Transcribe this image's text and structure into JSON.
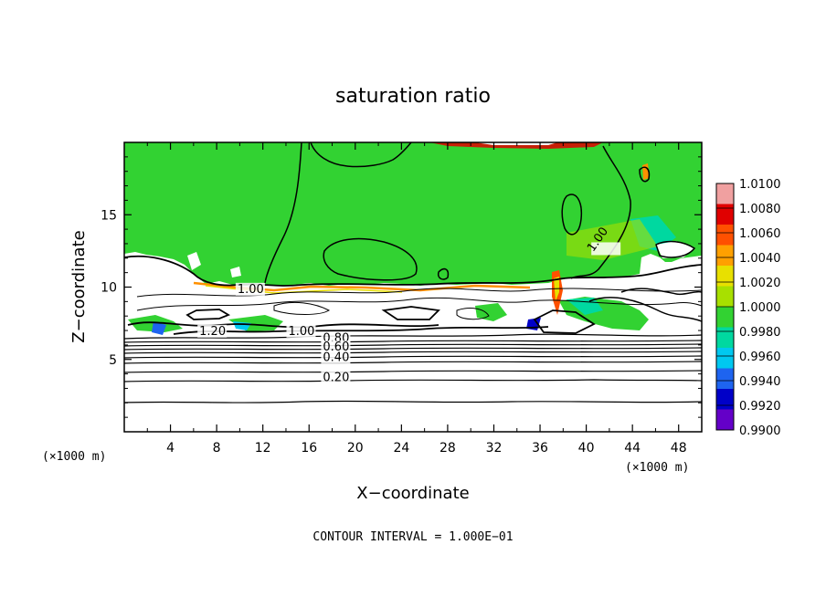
{
  "chart_data": {
    "type": "heatmap",
    "title": "saturation ratio",
    "xlabel": "X−coordinate",
    "ylabel": "Z−coordinate",
    "xunit": "(×1000 m)",
    "xunit_right": "(×1000 m)",
    "xlim": [
      0,
      50
    ],
    "ylim": [
      0,
      20
    ],
    "x_ticks": [
      "4",
      "8",
      "12",
      "16",
      "20",
      "24",
      "28",
      "32",
      "36",
      "40",
      "44",
      "48"
    ],
    "y_ticks": [
      "5",
      "10",
      "15"
    ],
    "colorbar": {
      "labels": [
        "1.0100",
        "1.0080",
        "1.0060",
        "1.0040",
        "1.0020",
        "1.0000",
        "0.9980",
        "0.9960",
        "0.9940",
        "0.9920",
        "0.9900"
      ],
      "colors": [
        "#f0a0a0",
        "#e00000",
        "#ff5000",
        "#ffa000",
        "#e8e000",
        "#a8e000",
        "#32d232",
        "#00d8a0",
        "#00c8f0",
        "#1e64f0",
        "#0000c8",
        "#6400c8"
      ]
    },
    "contour_labels": [
      {
        "text": "1.00",
        "x": 9.8,
        "y": 9.6
      },
      {
        "text": "1.20",
        "x": 6.5,
        "y": 6.7
      },
      {
        "text": "1.00",
        "x": 14.2,
        "y": 6.7
      },
      {
        "text": "0.80",
        "x": 17.2,
        "y": 6.2
      },
      {
        "text": "0.60",
        "x": 17.2,
        "y": 5.6
      },
      {
        "text": "0.40",
        "x": 17.2,
        "y": 4.9
      },
      {
        "text": "0.20",
        "x": 17.2,
        "y": 3.5
      },
      {
        "text": "1.00",
        "x": 40.6,
        "y": 12.4
      }
    ],
    "field_colors": {
      "saturated": "#32d232",
      "subsaturated": "#ffffff",
      "supersaturated_top": "#e00000",
      "edge_orange": "#ff9000",
      "edge_yellow": "#e8e000",
      "edge_cyan": "#00d8a0",
      "edge_blue": "#1e64f0"
    }
  },
  "footer_note": "CONTOUR INTERVAL = 1.000E−01"
}
